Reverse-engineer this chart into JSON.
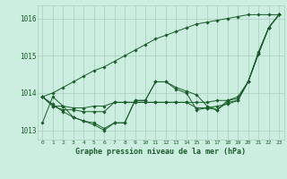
{
  "title": "Graphe pression niveau de la mer (hPa)",
  "background_color": "#cceee0",
  "plot_bg_color": "#cceee0",
  "grid_color": "#aaccbb",
  "line_color": "#1a5c2a",
  "xlim": [
    -0.5,
    23.5
  ],
  "ylim": [
    1012.75,
    1016.35
  ],
  "yticks": [
    1013,
    1014,
    1015,
    1016
  ],
  "xticks": [
    0,
    1,
    2,
    3,
    4,
    5,
    6,
    7,
    8,
    9,
    10,
    11,
    12,
    13,
    14,
    15,
    16,
    17,
    18,
    19,
    20,
    21,
    22,
    23
  ],
  "series": [
    [
      1013.2,
      1013.9,
      1013.65,
      1013.35,
      1013.25,
      1013.15,
      1013.0,
      1013.2,
      1013.2,
      1013.8,
      1013.8,
      1014.3,
      1014.3,
      1014.15,
      1014.05,
      1013.95,
      1013.65,
      1013.55,
      1013.8,
      1013.9,
      1014.3,
      1015.1,
      1015.75,
      1016.1
    ],
    [
      1013.9,
      1013.65,
      1013.55,
      1013.55,
      1013.5,
      1013.5,
      1013.5,
      1013.75,
      1013.75,
      1013.75,
      1013.75,
      1013.75,
      1013.75,
      1013.75,
      1013.75,
      1013.75,
      1013.75,
      1013.8,
      1013.8,
      1013.85,
      1014.3,
      1015.05,
      1015.75,
      1016.1
    ],
    [
      1013.9,
      1013.65,
      1013.65,
      1013.6,
      1013.6,
      1013.65,
      1013.65,
      1013.75,
      1013.75,
      1013.75,
      1013.75,
      1013.75,
      1013.75,
      1013.75,
      1013.75,
      1013.6,
      1013.6,
      1013.65,
      1013.7,
      1013.8,
      1014.3,
      1015.05,
      1015.75,
      1016.1
    ],
    [
      1013.9,
      1013.7,
      1013.5,
      1013.35,
      1013.25,
      1013.2,
      1013.05,
      1013.2,
      1013.2,
      1013.8,
      1013.8,
      1014.3,
      1014.3,
      1014.1,
      1014.0,
      1013.55,
      1013.6,
      1013.55,
      1013.75,
      1013.8,
      1014.3,
      1015.05,
      1015.75,
      1016.1
    ],
    [
      1013.9,
      1014.0,
      1014.15,
      1014.3,
      1014.45,
      1014.6,
      1014.7,
      1014.85,
      1015.0,
      1015.15,
      1015.3,
      1015.45,
      1015.55,
      1015.65,
      1015.75,
      1015.85,
      1015.9,
      1015.95,
      1016.0,
      1016.05,
      1016.1,
      1016.1,
      1016.1,
      1016.1
    ]
  ]
}
